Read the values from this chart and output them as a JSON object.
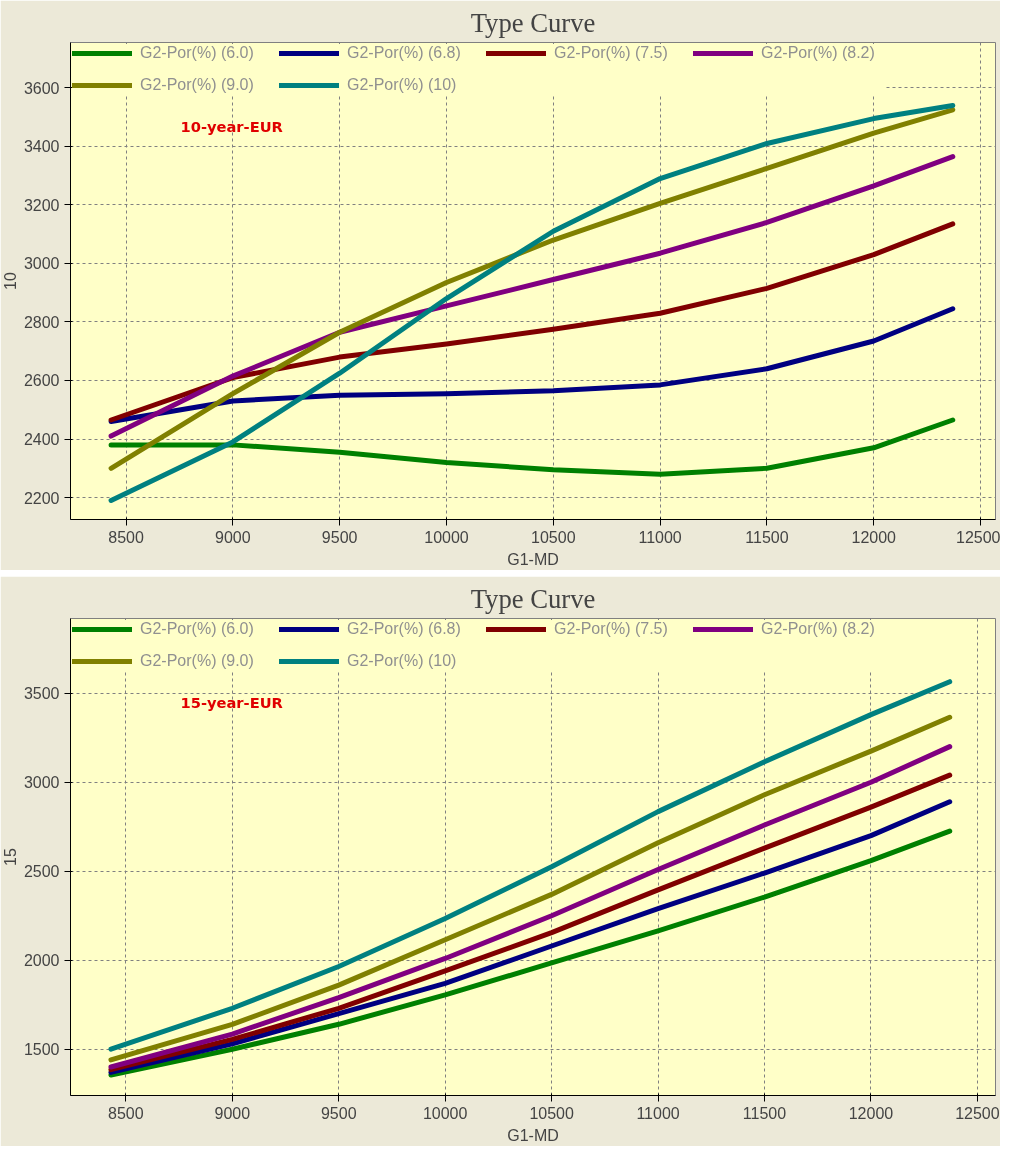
{
  "chart_data": [
    {
      "type": "line",
      "title": "Type Curve",
      "xlabel": "G1-MD",
      "ylabel": "10",
      "annotations": [
        "10-year-EUR"
      ],
      "x": [
        8430,
        9000,
        9500,
        10000,
        10500,
        11000,
        11500,
        12000,
        12370
      ],
      "xlim": [
        8240,
        12570
      ],
      "ylim": [
        2125,
        3755
      ],
      "xticks": [
        8500,
        9000,
        9500,
        10000,
        10500,
        11000,
        11500,
        12000,
        12500
      ],
      "yticks": [
        2200,
        2400,
        2600,
        2800,
        3000,
        3200,
        3400,
        3600
      ],
      "grid": true,
      "legend": "top left",
      "marker": "none",
      "line_style": "solid",
      "series": [
        {
          "name": "G2-Por(%) (6.0)",
          "color": "#008000",
          "values": [
            2380,
            2380,
            2355,
            2320,
            2295,
            2280,
            2300,
            2370,
            2465
          ]
        },
        {
          "name": "G2-Por(%) (6.8)",
          "color": "#000080",
          "values": [
            2460,
            2530,
            2550,
            2555,
            2565,
            2585,
            2640,
            2735,
            2845
          ]
        },
        {
          "name": "G2-Por(%) (7.5)",
          "color": "#800000",
          "values": [
            2465,
            2610,
            2680,
            2725,
            2775,
            2830,
            2915,
            3030,
            3135
          ]
        },
        {
          "name": "G2-Por(%) (8.2)",
          "color": "#800080",
          "values": [
            2410,
            2615,
            2765,
            2855,
            2945,
            3035,
            3140,
            3265,
            3365
          ]
        },
        {
          "name": "G2-Por(%) (9.0)",
          "color": "#808000",
          "values": [
            2300,
            2555,
            2765,
            2935,
            3080,
            3205,
            3325,
            3445,
            3525
          ]
        },
        {
          "name": "G2-Por(%) (10)",
          "color": "#008080",
          "values": [
            2190,
            2390,
            2625,
            2880,
            3110,
            3290,
            3410,
            3495,
            3540
          ]
        }
      ]
    },
    {
      "type": "line",
      "title": "Type Curve",
      "xlabel": "G1-MD",
      "ylabel": "15",
      "annotations": [
        "15-year-EUR"
      ],
      "x": [
        8430,
        9000,
        9500,
        10000,
        10500,
        11000,
        11500,
        12000,
        12370
      ],
      "xlim": [
        8240,
        12585
      ],
      "ylim": [
        1240,
        3920
      ],
      "xticks": [
        8500,
        9000,
        9500,
        10000,
        10500,
        11000,
        11500,
        12000,
        12500
      ],
      "yticks": [
        1500,
        2000,
        2500,
        3000,
        3500
      ],
      "grid": true,
      "legend": "top left",
      "marker": "none",
      "line_style": "solid",
      "series": [
        {
          "name": "G2-Por(%) (6.0)",
          "color": "#008000",
          "values": [
            1355,
            1500,
            1640,
            1805,
            1985,
            2165,
            2355,
            2560,
            2725
          ]
        },
        {
          "name": "G2-Por(%) (6.8)",
          "color": "#000080",
          "values": [
            1370,
            1530,
            1700,
            1870,
            2080,
            2290,
            2490,
            2700,
            2890
          ]
        },
        {
          "name": "G2-Por(%) (7.5)",
          "color": "#800000",
          "values": [
            1385,
            1555,
            1730,
            1940,
            2155,
            2395,
            2630,
            2860,
            3040
          ]
        },
        {
          "name": "G2-Por(%) (8.2)",
          "color": "#800080",
          "values": [
            1400,
            1585,
            1790,
            2010,
            2250,
            2510,
            2760,
            3000,
            3200
          ]
        },
        {
          "name": "G2-Por(%) (9.0)",
          "color": "#808000",
          "values": [
            1440,
            1640,
            1860,
            2115,
            2370,
            2660,
            2930,
            3175,
            3365
          ]
        },
        {
          "name": "G2-Por(%) (10)",
          "color": "#008080",
          "values": [
            1500,
            1730,
            1965,
            2235,
            2525,
            2835,
            3115,
            3380,
            3565
          ]
        }
      ]
    }
  ]
}
